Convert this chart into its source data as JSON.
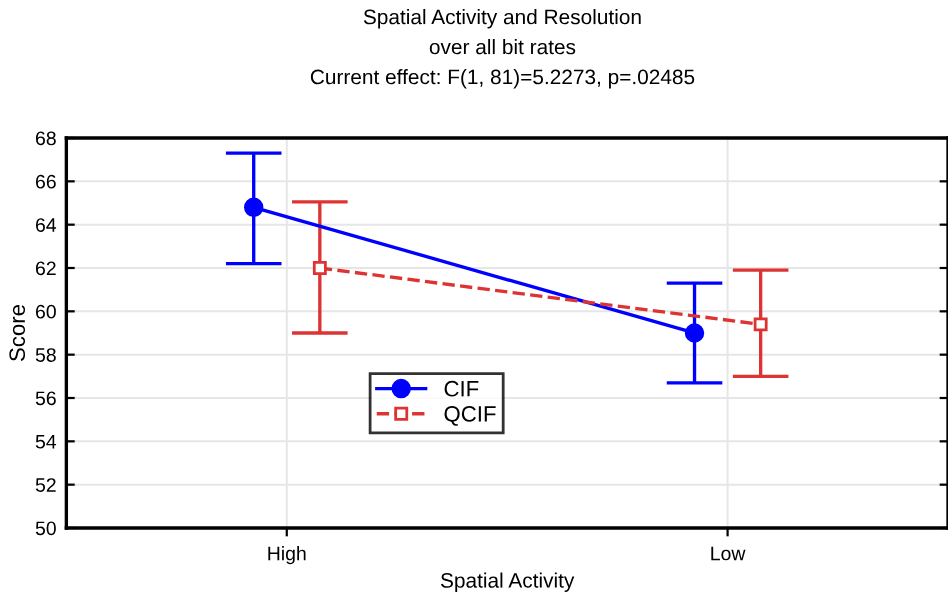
{
  "chart_data": {
    "type": "line",
    "title": "Spatial Activity and Resolution",
    "subtitle": "over all bit rates",
    "annotations": [
      "Current effect: F(1, 81)=5.2273, p=.02485"
    ],
    "xlabel": "Spatial Activity",
    "ylabel": "Score",
    "categories": [
      "High",
      "Low"
    ],
    "series": [
      {
        "name": "CIF",
        "color": "#0000ff",
        "values": [
          64.8,
          59.0
        ],
        "errors": [
          [
            62.2,
            67.3
          ],
          [
            56.7,
            61.3
          ]
        ],
        "marker": "circle",
        "line_style": "solid"
      },
      {
        "name": "QCIF",
        "color": "#dd3333",
        "values": [
          62.0,
          59.4
        ],
        "errors": [
          [
            59.0,
            65.05
          ],
          [
            57.0,
            61.9
          ]
        ],
        "marker": "square",
        "line_style": "dashed"
      }
    ],
    "ylim": [
      50,
      68
    ],
    "yticks": [
      50,
      52,
      54,
      56,
      58,
      60,
      62,
      64,
      66,
      68
    ],
    "grid": true,
    "legend": "center"
  }
}
